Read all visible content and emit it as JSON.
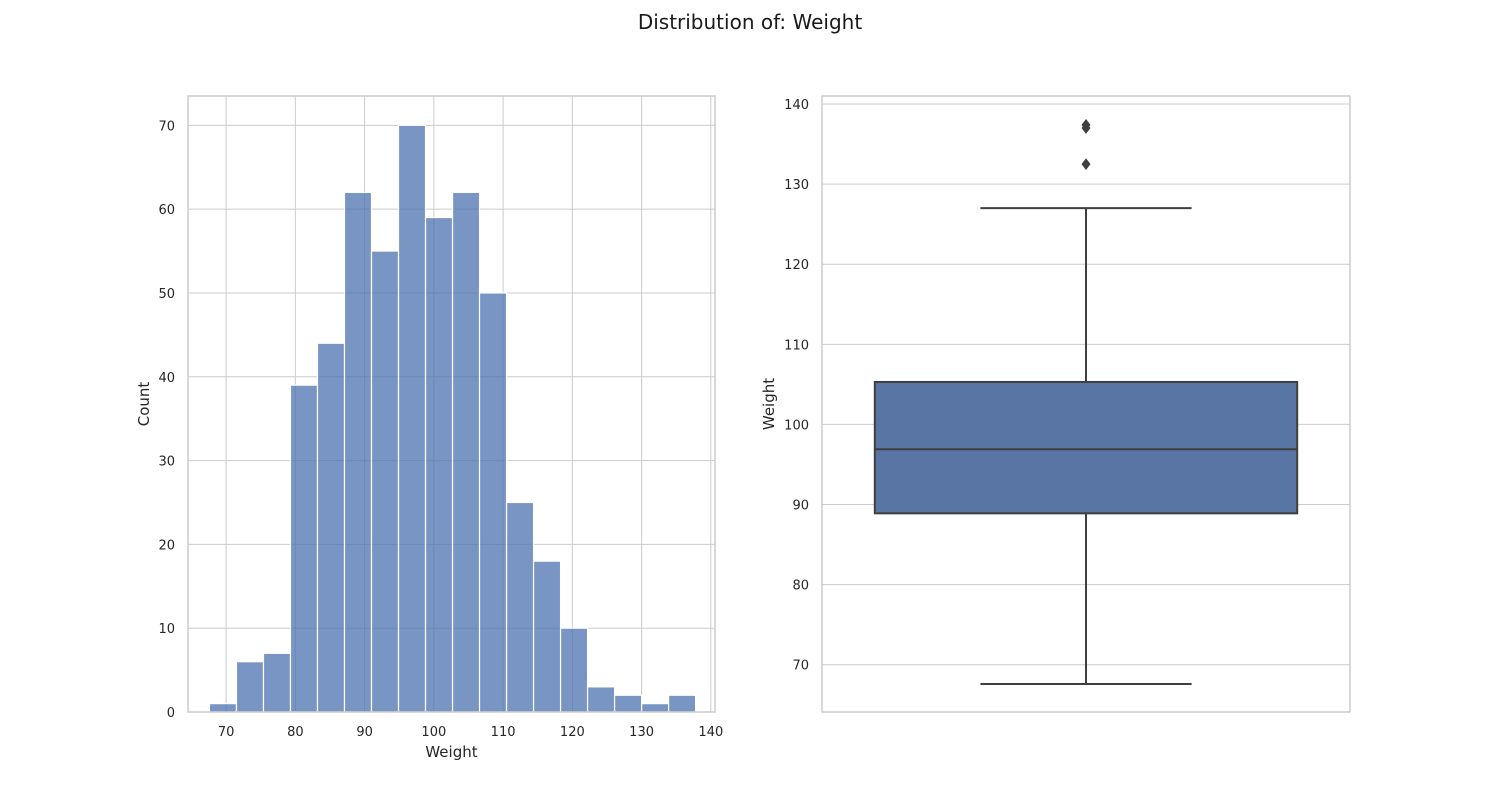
{
  "figure": {
    "title": "Distribution of: Weight",
    "colors": {
      "hist_fill": "#4c72b0",
      "hist_fill_opacity": 0.75,
      "box_fill": "#5975a4",
      "line": "#3f3f3f",
      "grid": "#cccccc",
      "frame": "#cccccc",
      "text": "#262626"
    }
  },
  "chart_data": [
    {
      "type": "histogram",
      "title": "",
      "xlabel": "Weight",
      "ylabel": "Count",
      "xlim": [
        64.5,
        140.6
      ],
      "ylim": [
        0,
        73.5
      ],
      "xticks": [
        70,
        80,
        90,
        100,
        110,
        120,
        130,
        140
      ],
      "yticks": [
        0,
        10,
        20,
        30,
        40,
        50,
        60,
        70
      ],
      "grid": true,
      "bins": [
        {
          "x0": 67.6,
          "x1": 71.5,
          "count": 1
        },
        {
          "x0": 71.5,
          "x1": 75.4,
          "count": 6
        },
        {
          "x0": 75.4,
          "x1": 79.3,
          "count": 7
        },
        {
          "x0": 79.3,
          "x1": 83.2,
          "count": 39
        },
        {
          "x0": 83.2,
          "x1": 87.1,
          "count": 44
        },
        {
          "x0": 87.1,
          "x1": 91.0,
          "count": 62
        },
        {
          "x0": 91.0,
          "x1": 94.9,
          "count": 55
        },
        {
          "x0": 94.9,
          "x1": 98.8,
          "count": 70
        },
        {
          "x0": 98.8,
          "x1": 102.7,
          "count": 59
        },
        {
          "x0": 102.7,
          "x1": 106.6,
          "count": 62
        },
        {
          "x0": 106.6,
          "x1": 110.5,
          "count": 50
        },
        {
          "x0": 110.5,
          "x1": 114.4,
          "count": 25
        },
        {
          "x0": 114.4,
          "x1": 118.3,
          "count": 18
        },
        {
          "x0": 118.3,
          "x1": 122.2,
          "count": 10
        },
        {
          "x0": 122.2,
          "x1": 126.1,
          "count": 3
        },
        {
          "x0": 126.1,
          "x1": 130.0,
          "count": 2
        },
        {
          "x0": 130.0,
          "x1": 133.9,
          "count": 1
        },
        {
          "x0": 133.9,
          "x1": 137.8,
          "count": 2
        }
      ]
    },
    {
      "type": "box",
      "title": "",
      "xlabel": "",
      "ylabel": "Weight",
      "ylim": [
        64.1,
        141.0
      ],
      "yticks": [
        70,
        80,
        90,
        100,
        110,
        120,
        130,
        140
      ],
      "grid": true,
      "whisker_low": 67.6,
      "q1": 88.9,
      "median": 96.9,
      "q3": 105.3,
      "whisker_high": 127.0,
      "outliers": [
        137.4,
        137.0,
        132.5
      ]
    }
  ]
}
